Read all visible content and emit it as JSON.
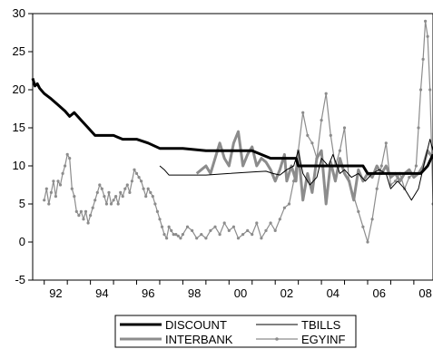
{
  "chart_data": {
    "type": "line",
    "title": "",
    "xlabel": "",
    "ylabel": "",
    "xlim": [
      1991.5,
      2008.83
    ],
    "ylim": [
      -5,
      30
    ],
    "y_ticks": [
      -5,
      0,
      5,
      10,
      15,
      20,
      25,
      30
    ],
    "x_ticks": [
      {
        "label": "92",
        "year": 1992.5
      },
      {
        "label": "94",
        "year": 1994.5
      },
      {
        "label": "96",
        "year": 1996.5
      },
      {
        "label": "98",
        "year": 1998.5
      },
      {
        "label": "00",
        "year": 2000.5
      },
      {
        "label": "02",
        "year": 2002.5
      },
      {
        "label": "04",
        "year": 2004.5
      },
      {
        "label": "06",
        "year": 2006.5
      },
      {
        "label": "08",
        "year": 2008.5
      }
    ],
    "grid": false,
    "legend_position": "bottom",
    "series": [
      {
        "name": "DISCOUNT",
        "color": "#000000",
        "style": "thick",
        "x": [
          1991.5,
          1991.6,
          1991.7,
          1991.8,
          1992.0,
          1992.3,
          1992.6,
          1992.9,
          1993.1,
          1993.3,
          1993.6,
          1993.9,
          1994.2,
          1995.0,
          1995.4,
          1996.0,
          1996.5,
          1997.0,
          1997.3,
          1998.0,
          1999.0,
          2000.0,
          2001.0,
          2001.8,
          2002.2,
          2002.9,
          2003.0,
          2004.0,
          2004.9,
          2005.0,
          2005.5,
          2005.8,
          2006.0,
          2006.3,
          2006.6,
          2007.0,
          2007.5,
          2008.0,
          2008.3,
          2008.6,
          2008.83
        ],
        "y": [
          21.5,
          20.5,
          20.8,
          20.2,
          19.5,
          18.8,
          18.0,
          17.2,
          16.5,
          17.0,
          16.0,
          15.0,
          14.0,
          14.0,
          13.5,
          13.5,
          13.0,
          12.3,
          12.3,
          12.3,
          12.0,
          12.0,
          12.0,
          11.0,
          11.0,
          11.0,
          10.0,
          10.0,
          10.0,
          10.0,
          10.0,
          10.0,
          9.0,
          9.0,
          9.0,
          9.0,
          9.0,
          9.0,
          9.0,
          10.0,
          11.5
        ]
      },
      {
        "name": "TBILLS",
        "color": "#000000",
        "style": "thin",
        "x": [
          1997.0,
          1997.2,
          1997.4,
          1998.0,
          1999.0,
          2000.0,
          2001.0,
          2001.6,
          2001.9,
          2002.2,
          2002.5,
          2002.8,
          2003.0,
          2003.2,
          2003.5,
          2003.8,
          2004.0,
          2004.3,
          2004.5,
          2004.8,
          2005.0,
          2005.3,
          2005.6,
          2005.9,
          2006.2,
          2006.5,
          2006.8,
          2007.0,
          2007.3,
          2007.6,
          2007.9,
          2008.2,
          2008.5,
          2008.7,
          2008.83
        ],
        "y": [
          10.0,
          9.5,
          8.8,
          8.8,
          8.8,
          9.0,
          9.2,
          9.3,
          9.0,
          8.8,
          9.5,
          10.0,
          12.0,
          9.0,
          7.5,
          8.5,
          11.0,
          10.0,
          11.5,
          9.0,
          9.5,
          8.5,
          9.0,
          8.0,
          9.0,
          9.5,
          9.0,
          7.0,
          8.0,
          7.0,
          5.5,
          7.0,
          11.0,
          13.5,
          12.0
        ]
      },
      {
        "name": "INTERBANK",
        "color": "#8c8c8c",
        "style": "thick",
        "x": [
          1998.6,
          1998.8,
          1999.0,
          1999.2,
          1999.4,
          1999.6,
          1999.8,
          2000.0,
          2000.2,
          2000.4,
          2000.6,
          2000.8,
          2001.0,
          2001.2,
          2001.4,
          2001.6,
          2001.8,
          2002.0,
          2002.2,
          2002.4,
          2002.5,
          2002.7,
          2002.9,
          2003.0,
          2003.2,
          2003.4,
          2003.6,
          2003.8,
          2004.0,
          2004.2,
          2004.4,
          2004.6,
          2004.8,
          2005.0,
          2005.2,
          2005.4,
          2005.6,
          2005.8,
          2006.0,
          2006.2,
          2006.4,
          2006.6,
          2006.8,
          2007.0,
          2007.2,
          2007.4,
          2007.6,
          2007.8,
          2008.0,
          2008.2,
          2008.4,
          2008.6,
          2008.83
        ],
        "y": [
          9.0,
          9.5,
          10.0,
          9.0,
          11.0,
          13.0,
          11.0,
          10.0,
          13.0,
          14.5,
          10.0,
          11.5,
          12.5,
          10.0,
          11.0,
          10.5,
          9.5,
          8.0,
          9.5,
          11.5,
          8.0,
          10.0,
          8.0,
          12.0,
          5.5,
          9.0,
          6.5,
          11.0,
          12.0,
          5.0,
          10.5,
          8.0,
          11.0,
          9.0,
          8.0,
          5.5,
          9.5,
          8.0,
          9.0,
          8.5,
          10.0,
          9.0,
          10.0,
          8.5,
          9.0,
          8.0,
          9.0,
          9.5,
          8.5,
          9.0,
          10.0,
          12.0,
          11.0
        ]
      },
      {
        "name": "EGYINF",
        "color": "#8c8c8c",
        "style": "marker",
        "x": [
          1992.0,
          1992.1,
          1992.2,
          1992.3,
          1992.4,
          1992.5,
          1992.6,
          1992.7,
          1992.8,
          1992.9,
          1993.0,
          1993.1,
          1993.2,
          1993.3,
          1993.4,
          1993.5,
          1993.6,
          1993.7,
          1993.8,
          1993.9,
          1994.0,
          1994.1,
          1994.2,
          1994.3,
          1994.4,
          1994.5,
          1994.6,
          1994.7,
          1994.8,
          1994.9,
          1995.0,
          1995.1,
          1995.2,
          1995.3,
          1995.4,
          1995.5,
          1995.6,
          1995.7,
          1995.8,
          1995.9,
          1996.0,
          1996.1,
          1996.2,
          1996.3,
          1996.4,
          1996.5,
          1996.6,
          1996.7,
          1996.8,
          1996.9,
          1997.0,
          1997.1,
          1997.2,
          1997.3,
          1997.4,
          1997.5,
          1997.6,
          1997.7,
          1997.8,
          1997.9,
          1998.0,
          1998.2,
          1998.4,
          1998.6,
          1998.8,
          1999.0,
          1999.2,
          1999.4,
          1999.6,
          1999.8,
          2000.0,
          2000.2,
          2000.4,
          2000.6,
          2000.8,
          2001.0,
          2001.2,
          2001.4,
          2001.6,
          2001.8,
          2002.0,
          2002.2,
          2002.4,
          2002.6,
          2002.8,
          2003.0,
          2003.2,
          2003.4,
          2003.6,
          2003.8,
          2004.0,
          2004.2,
          2004.4,
          2004.6,
          2004.8,
          2005.0,
          2005.2,
          2005.4,
          2005.6,
          2005.8,
          2006.0,
          2006.2,
          2006.4,
          2006.6,
          2006.8,
          2007.0,
          2007.2,
          2007.4,
          2007.6,
          2007.8,
          2008.0,
          2008.1,
          2008.2,
          2008.3,
          2008.4,
          2008.5,
          2008.6,
          2008.7,
          2008.83
        ],
        "y": [
          5.5,
          7.0,
          5.0,
          6.5,
          8.0,
          6.0,
          8.0,
          7.5,
          9.0,
          10.0,
          11.5,
          11.0,
          7.0,
          6.0,
          4.0,
          3.5,
          4.0,
          3.0,
          4.0,
          2.5,
          3.5,
          4.5,
          5.5,
          6.5,
          7.5,
          7.0,
          6.0,
          5.0,
          6.5,
          5.0,
          5.5,
          6.0,
          5.0,
          6.5,
          6.0,
          7.0,
          7.5,
          6.5,
          8.0,
          9.5,
          9.0,
          8.5,
          8.0,
          7.0,
          6.0,
          7.0,
          6.5,
          6.0,
          5.0,
          4.0,
          3.0,
          2.0,
          1.0,
          0.5,
          2.0,
          1.5,
          1.0,
          1.0,
          0.8,
          0.5,
          1.0,
          2.0,
          1.5,
          0.5,
          1.0,
          0.5,
          1.5,
          2.0,
          1.0,
          2.5,
          1.5,
          2.0,
          0.5,
          1.0,
          1.5,
          1.0,
          2.5,
          0.5,
          1.5,
          2.5,
          1.5,
          3.0,
          4.5,
          5.0,
          8.0,
          12.0,
          17.0,
          14.0,
          13.0,
          11.0,
          16.0,
          19.5,
          14.0,
          10.0,
          12.0,
          15.0,
          8.0,
          6.0,
          4.0,
          2.0,
          0.0,
          3.0,
          7.0,
          10.0,
          13.0,
          7.5,
          8.0,
          9.0,
          7.0,
          8.5,
          9.0,
          10.0,
          15.0,
          20.0,
          24.0,
          29.0,
          27.0,
          20.0,
          5.0
        ]
      }
    ]
  }
}
